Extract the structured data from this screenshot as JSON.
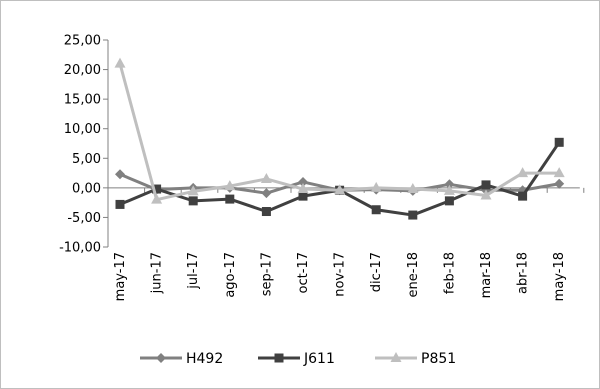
{
  "chart_data": {
    "type": "line",
    "title": "",
    "xlabel": "",
    "ylabel": "",
    "ylim": [
      -10,
      25
    ],
    "yticks": [
      "25,00",
      "20,00",
      "15,00",
      "10,00",
      "5,00",
      "0,00",
      "-5,00",
      "-10,00"
    ],
    "ytick_values": [
      25,
      20,
      15,
      10,
      5,
      0,
      -5,
      -10
    ],
    "categories": [
      "may-17",
      "jun-17",
      "jul-17",
      "ago-17",
      "sep-17",
      "oct-17",
      "nov-17",
      "dic-17",
      "ene-18",
      "feb-18",
      "mar-18",
      "abr-18",
      "may-18"
    ],
    "legend_position": "bottom",
    "grid": false,
    "series": [
      {
        "name": "H492",
        "color": "#808080",
        "marker": "diamond",
        "values": [
          2.3,
          -0.3,
          0.0,
          0.0,
          -0.9,
          1.0,
          -0.4,
          -0.3,
          -0.5,
          0.6,
          -0.4,
          -0.4,
          0.7
        ]
      },
      {
        "name": "J611",
        "color": "#404040",
        "marker": "square",
        "values": [
          -2.8,
          -0.2,
          -2.2,
          -1.9,
          -4.0,
          -1.4,
          -0.4,
          -3.7,
          -4.6,
          -2.2,
          0.5,
          -1.4,
          7.7
        ]
      },
      {
        "name": "P851",
        "color": "#bfbfbf",
        "marker": "triangle",
        "values": [
          21.0,
          -2.0,
          -0.6,
          0.3,
          1.5,
          -0.2,
          -0.4,
          0.0,
          -0.2,
          -0.5,
          -1.3,
          2.5,
          2.5
        ]
      }
    ]
  }
}
